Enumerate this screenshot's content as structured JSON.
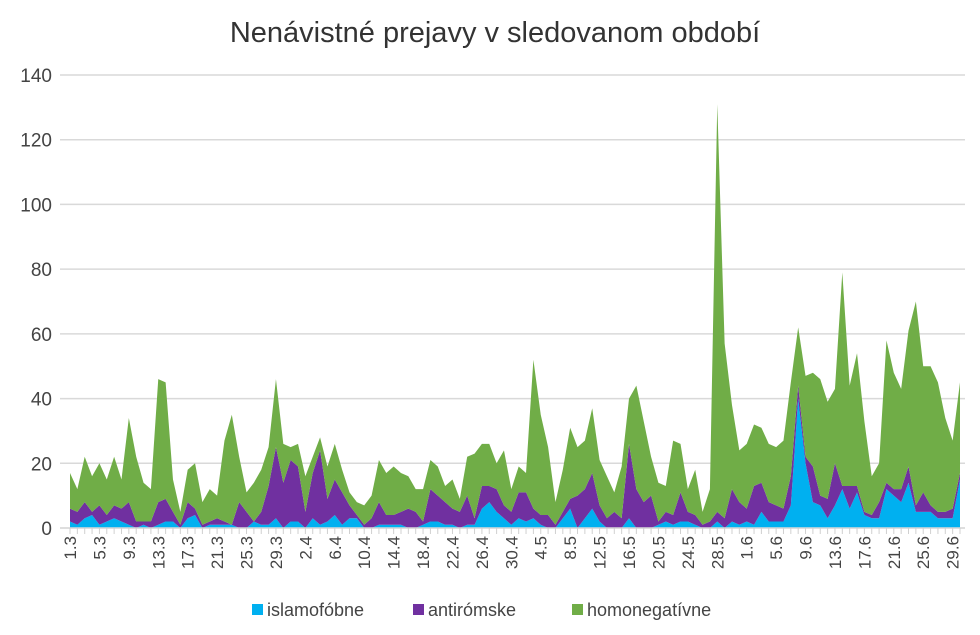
{
  "chart_data": {
    "type": "area",
    "stacked": true,
    "title": "Nenávistné prejavy v sledovanom období",
    "xlabel": "",
    "ylabel": "",
    "ylim": [
      0,
      140
    ],
    "yticks": [
      0,
      20,
      40,
      60,
      80,
      100,
      120,
      140
    ],
    "grid": true,
    "legend_position": "bottom",
    "categories": [
      "1.3",
      "2.3",
      "3.3",
      "4.3",
      "5.3",
      "6.3",
      "7.3",
      "8.3",
      "9.3",
      "10.3",
      "11.3",
      "12.3",
      "13.3",
      "14.3",
      "15.3",
      "16.3",
      "17.3",
      "18.3",
      "19.3",
      "20.3",
      "21.3",
      "22.3",
      "23.3",
      "24.3",
      "25.3",
      "26.3",
      "27.3",
      "28.3",
      "29.3",
      "30.3",
      "31.3",
      "1.4",
      "2.4",
      "3.4",
      "4.4",
      "5.4",
      "6.4",
      "7.4",
      "8.4",
      "9.4",
      "10.4",
      "11.4",
      "12.4",
      "13.4",
      "14.4",
      "15.4",
      "16.4",
      "17.4",
      "18.4",
      "19.4",
      "20.4",
      "21.4",
      "22.4",
      "23.4",
      "24.4",
      "25.4",
      "26.4",
      "27.4",
      "28.4",
      "29.4",
      "30.4",
      "1.5",
      "2.5",
      "3.5",
      "4.5",
      "5.5",
      "6.5",
      "7.5",
      "8.5",
      "9.5",
      "10.5",
      "11.5",
      "12.5",
      "13.5",
      "14.5",
      "15.5",
      "16.5",
      "17.5",
      "18.5",
      "19.5",
      "20.5",
      "21.5",
      "22.5",
      "23.5",
      "24.5",
      "25.5",
      "26.5",
      "27.5",
      "28.5",
      "29.5",
      "30.5",
      "31.5",
      "1.6",
      "2.6",
      "3.6",
      "4.6",
      "5.6",
      "6.6",
      "7.6",
      "8.6",
      "9.6",
      "10.6",
      "11.6",
      "12.6",
      "13.6",
      "14.6",
      "15.6",
      "16.6",
      "17.6",
      "18.6",
      "19.6",
      "20.6",
      "21.6",
      "22.6",
      "23.6",
      "24.6",
      "25.6",
      "26.6",
      "27.6",
      "28.6",
      "29.6",
      "30.6"
    ],
    "tick_every": 4,
    "series": [
      {
        "name": "islamofóbne",
        "color": "#00b0f0",
        "values": [
          2,
          1,
          3,
          4,
          1,
          2,
          3,
          2,
          1,
          0,
          1,
          0,
          1,
          2,
          2,
          0,
          3,
          4,
          0,
          1,
          1,
          1,
          1,
          0,
          0,
          2,
          1,
          1,
          3,
          0,
          2,
          2,
          0,
          3,
          1,
          2,
          4,
          1,
          3,
          3,
          0,
          0,
          1,
          1,
          1,
          1,
          0,
          0,
          1,
          2,
          2,
          1,
          1,
          0,
          1,
          1,
          6,
          8,
          5,
          3,
          1,
          3,
          2,
          3,
          1,
          0,
          0,
          3,
          6,
          0,
          3,
          6,
          2,
          0,
          0,
          0,
          3,
          0,
          0,
          0,
          1,
          2,
          1,
          2,
          2,
          1,
          0,
          0,
          2,
          0,
          2,
          1,
          2,
          1,
          5,
          2,
          2,
          2,
          7,
          40,
          20,
          8,
          7,
          3,
          7,
          12,
          6,
          11,
          4,
          3,
          3,
          12,
          10,
          8,
          14,
          5,
          5,
          5,
          3,
          3,
          3,
          15
        ]
      },
      {
        "name": "antirómske",
        "color": "#7030a0",
        "values": [
          4,
          4,
          5,
          1,
          6,
          2,
          4,
          4,
          7,
          2,
          1,
          2,
          7,
          7,
          3,
          1,
          5,
          2,
          1,
          1,
          2,
          1,
          0,
          8,
          5,
          0,
          4,
          12,
          22,
          14,
          19,
          17,
          5,
          14,
          23,
          7,
          11,
          10,
          4,
          1,
          1,
          3,
          7,
          3,
          3,
          4,
          6,
          5,
          1,
          10,
          8,
          7,
          5,
          5,
          9,
          2,
          7,
          5,
          7,
          4,
          4,
          8,
          9,
          3,
          3,
          4,
          1,
          2,
          3,
          10,
          9,
          11,
          5,
          3,
          5,
          3,
          23,
          12,
          8,
          10,
          1,
          3,
          3,
          9,
          3,
          3,
          1,
          2,
          3,
          3,
          10,
          7,
          4,
          12,
          9,
          6,
          5,
          4,
          9,
          4,
          2,
          11,
          3,
          6,
          13,
          1,
          7,
          2,
          1,
          1,
          5,
          2,
          2,
          4,
          5,
          2,
          6,
          2,
          2,
          2,
          3,
          2
        ]
      },
      {
        "name": "homonegatívne",
        "color": "#70ad47",
        "values": [
          11,
          7,
          14,
          11,
          13,
          11,
          15,
          9,
          26,
          20,
          12,
          10,
          38,
          36,
          10,
          4,
          10,
          14,
          7,
          10,
          7,
          25,
          34,
          14,
          6,
          12,
          13,
          12,
          21,
          12,
          4,
          7,
          11,
          5,
          4,
          10,
          11,
          7,
          4,
          4,
          6,
          7,
          13,
          13,
          15,
          12,
          10,
          7,
          10,
          9,
          9,
          5,
          9,
          4,
          12,
          20,
          13,
          13,
          8,
          17,
          7,
          8,
          6,
          46,
          31,
          21,
          7,
          13,
          22,
          15,
          15,
          20,
          14,
          13,
          6,
          16,
          14,
          32,
          25,
          12,
          12,
          8,
          23,
          15,
          7,
          14,
          4,
          10,
          126,
          54,
          26,
          16,
          20,
          19,
          17,
          18,
          18,
          21,
          29,
          18,
          25,
          29,
          36,
          30,
          23,
          66,
          31,
          41,
          28,
          12,
          12,
          44,
          36,
          31,
          42,
          63,
          39,
          43,
          40,
          29,
          21,
          28
        ]
      }
    ]
  }
}
